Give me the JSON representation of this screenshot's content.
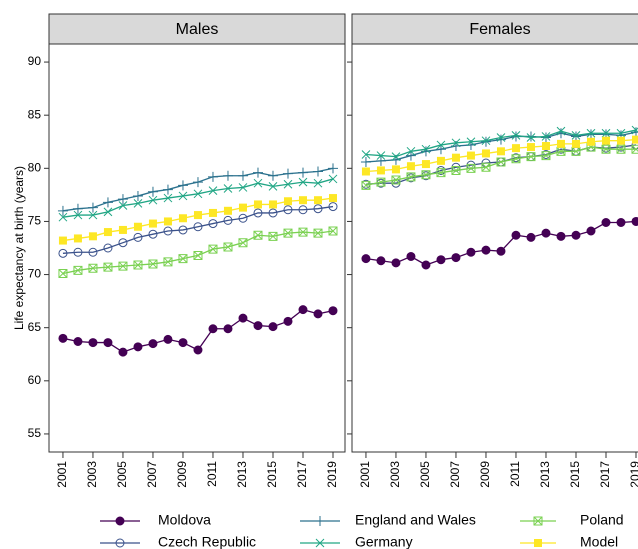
{
  "chart_data": [
    {
      "type": "line",
      "title": "Males",
      "ylabel": "Life expectancy at birth (years)",
      "x": [
        2001,
        2002,
        2003,
        2004,
        2005,
        2006,
        2007,
        2008,
        2009,
        2010,
        2011,
        2012,
        2013,
        2014,
        2015,
        2016,
        2017,
        2018,
        2019
      ],
      "xlim": [
        2000.07,
        2019.8
      ],
      "xticks": [
        2001,
        2003,
        2005,
        2007,
        2009,
        2011,
        2013,
        2015,
        2017,
        2019
      ],
      "ylim": [
        53.3,
        91.7
      ],
      "yticks": [
        55,
        60,
        65,
        70,
        75,
        80,
        85,
        90
      ],
      "series": [
        {
          "name": "Moldova",
          "color": "#440154",
          "marker": "filled-circle",
          "values": [
            64.0,
            63.7,
            63.6,
            63.6,
            62.7,
            63.2,
            63.5,
            63.9,
            63.6,
            62.9,
            64.9,
            64.9,
            65.9,
            65.2,
            65.1,
            65.6,
            66.7,
            66.3,
            66.6
          ]
        },
        {
          "name": "Czech Republic",
          "color": "#3b528b",
          "marker": "open-circle",
          "values": [
            72.0,
            72.1,
            72.1,
            72.5,
            73.0,
            73.5,
            73.8,
            74.1,
            74.2,
            74.5,
            74.8,
            75.1,
            75.3,
            75.8,
            75.8,
            76.1,
            76.1,
            76.2,
            76.4
          ]
        },
        {
          "name": "England and Wales",
          "color": "#2c728e",
          "marker": "plus",
          "values": [
            76.0,
            76.2,
            76.3,
            76.8,
            77.1,
            77.4,
            77.8,
            78.0,
            78.4,
            78.7,
            79.2,
            79.3,
            79.3,
            79.6,
            79.3,
            79.5,
            79.6,
            79.7,
            80.0
          ]
        },
        {
          "name": "Germany",
          "color": "#21a685",
          "marker": "cross",
          "values": [
            75.4,
            75.6,
            75.6,
            75.9,
            76.5,
            76.7,
            77.0,
            77.2,
            77.4,
            77.6,
            77.9,
            78.1,
            78.2,
            78.6,
            78.3,
            78.5,
            78.7,
            78.6,
            79.0
          ]
        },
        {
          "name": "Poland",
          "color": "#7ad151",
          "marker": "boxed-cross",
          "values": [
            70.1,
            70.4,
            70.6,
            70.7,
            70.8,
            70.9,
            71.0,
            71.2,
            71.5,
            71.8,
            72.4,
            72.6,
            73.0,
            73.7,
            73.6,
            73.9,
            74.0,
            73.9,
            74.1
          ]
        },
        {
          "name": "Model",
          "color": "#fde725",
          "marker": "filled-square",
          "values": [
            73.2,
            73.4,
            73.6,
            74.0,
            74.2,
            74.5,
            74.8,
            75.0,
            75.3,
            75.6,
            75.8,
            76.0,
            76.3,
            76.6,
            76.6,
            76.9,
            77.0,
            77.0,
            77.2
          ]
        }
      ]
    },
    {
      "type": "line",
      "title": "Females",
      "x": [
        2001,
        2002,
        2003,
        2004,
        2005,
        2006,
        2007,
        2008,
        2009,
        2010,
        2011,
        2012,
        2013,
        2014,
        2015,
        2016,
        2017,
        2018,
        2019
      ],
      "xlim": [
        2000.07,
        2019.8
      ],
      "xticks": [
        2001,
        2003,
        2005,
        2007,
        2009,
        2011,
        2013,
        2015,
        2017,
        2019
      ],
      "ylim": [
        53.3,
        91.7
      ],
      "yticks": [
        55,
        60,
        65,
        70,
        75,
        80,
        85,
        90
      ],
      "series": [
        {
          "color": "#440154",
          "marker": "filled-circle",
          "values": [
            71.5,
            71.3,
            71.1,
            71.7,
            70.9,
            71.4,
            71.6,
            72.1,
            72.3,
            72.2,
            73.7,
            73.5,
            73.9,
            73.6,
            73.7,
            74.1,
            74.9,
            74.9,
            75.0
          ]
        },
        {
          "color": "#3b528b",
          "marker": "open-circle",
          "values": [
            78.5,
            78.6,
            78.6,
            79.1,
            79.3,
            79.8,
            80.1,
            80.3,
            80.5,
            80.6,
            81.0,
            81.1,
            81.3,
            81.8,
            81.6,
            82.0,
            81.9,
            82.0,
            82.2
          ]
        },
        {
          "color": "#2c728e",
          "marker": "plus",
          "values": [
            80.6,
            80.7,
            80.8,
            81.2,
            81.6,
            81.8,
            82.1,
            82.2,
            82.5,
            82.7,
            83.0,
            83.0,
            82.9,
            83.3,
            83.0,
            83.2,
            83.2,
            83.1,
            83.4
          ]
        },
        {
          "color": "#21a685",
          "marker": "cross",
          "values": [
            81.3,
            81.2,
            81.1,
            81.6,
            81.8,
            82.2,
            82.4,
            82.5,
            82.6,
            82.9,
            83.1,
            82.9,
            83.0,
            83.5,
            83.1,
            83.3,
            83.3,
            83.3,
            83.6
          ]
        },
        {
          "color": "#7ad151",
          "marker": "boxed-cross",
          "values": [
            78.4,
            78.7,
            78.9,
            79.2,
            79.4,
            79.6,
            79.8,
            80.0,
            80.1,
            80.6,
            80.9,
            81.1,
            81.2,
            81.6,
            81.6,
            82.0,
            81.8,
            81.8,
            81.8
          ]
        },
        {
          "color": "#fde725",
          "marker": "filled-square",
          "values": [
            79.7,
            79.8,
            79.9,
            80.2,
            80.4,
            80.7,
            81.0,
            81.2,
            81.4,
            81.6,
            81.9,
            82.0,
            82.1,
            82.3,
            82.3,
            82.5,
            82.6,
            82.6,
            82.7
          ]
        }
      ]
    }
  ]
}
